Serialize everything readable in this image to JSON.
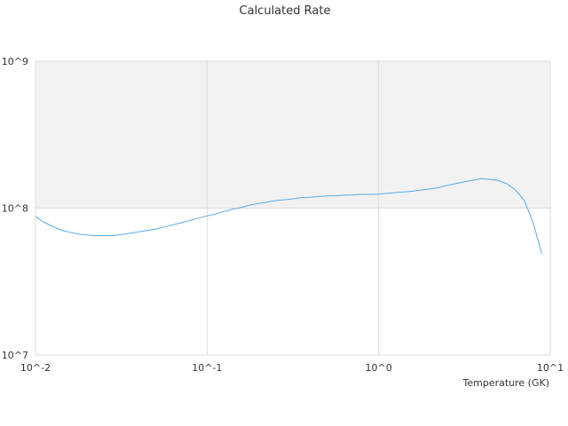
{
  "chart_data": {
    "type": "line",
    "title": "Calculated Rate",
    "xlabel": "Temperature (GK)",
    "ylabel": "",
    "x_scale": "log",
    "y_scale": "log",
    "xlim": [
      0.01,
      10
    ],
    "ylim": [
      10000000,
      1000000000
    ],
    "x_ticks": [
      "10^-2",
      "10^-1",
      "10^0",
      "10^1"
    ],
    "y_ticks": [
      "10^7",
      "10^8",
      "10^9"
    ],
    "grid": true,
    "legend": "none",
    "band": {
      "from": 100000000,
      "to": 1000000000,
      "color": "#f2f2f2"
    },
    "series": [
      {
        "color": "#5aa9e6",
        "x": [
          0.01,
          0.0112,
          0.0126,
          0.0141,
          0.0158,
          0.0178,
          0.02,
          0.0224,
          0.0251,
          0.0282,
          0.0316,
          0.0355,
          0.0398,
          0.0447,
          0.0501,
          0.0562,
          0.0631,
          0.0708,
          0.0794,
          0.0891,
          0.1,
          0.112,
          0.126,
          0.141,
          0.158,
          0.178,
          0.2,
          0.224,
          0.251,
          0.282,
          0.316,
          0.355,
          0.398,
          0.447,
          0.501,
          0.562,
          0.631,
          0.708,
          0.794,
          0.891,
          1.0,
          1.12,
          1.26,
          1.41,
          1.58,
          1.78,
          2.0,
          2.24,
          2.51,
          2.82,
          3.16,
          3.55,
          3.98,
          4.47,
          5.01,
          5.62,
          6.31,
          7.08,
          7.94,
          8.91
        ],
        "y": [
          88000000,
          80000000,
          75000000,
          71000000,
          68500000,
          66500000,
          65500000,
          65000000,
          65000000,
          65000000,
          66000000,
          67500000,
          69000000,
          70500000,
          72000000,
          74500000,
          77000000,
          79500000,
          82500000,
          85500000,
          88500000,
          91000000,
          95000000,
          98500000,
          101000000,
          105000000,
          107500000,
          110000000,
          112500000,
          114000000,
          115500000,
          118000000,
          118500000,
          120000000,
          121000000,
          121500000,
          122500000,
          123000000,
          124000000,
          124000000,
          124500000,
          126000000,
          127500000,
          129000000,
          130500000,
          133000000,
          135000000,
          138000000,
          143000000,
          147000000,
          151000000,
          155000000,
          159000000,
          157000000,
          154000000,
          146000000,
          132000000,
          112000000,
          80000000,
          49000000
        ]
      }
    ]
  }
}
